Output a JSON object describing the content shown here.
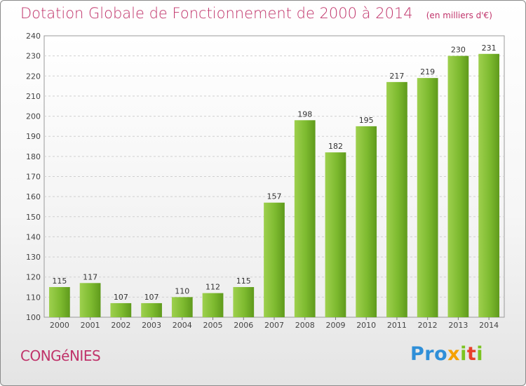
{
  "chart_data": {
    "type": "bar",
    "title": "Dotation Globale de Fonctionnement de 2000 à 2014",
    "subtitle": "(en milliers d'€)",
    "categories": [
      "2000",
      "2001",
      "2002",
      "2003",
      "2004",
      "2005",
      "2006",
      "2007",
      "2008",
      "2009",
      "2010",
      "2011",
      "2012",
      "2013",
      "2014"
    ],
    "values": [
      115,
      117,
      107,
      107,
      110,
      112,
      115,
      157,
      198,
      182,
      195,
      217,
      219,
      230,
      231
    ],
    "ylim": [
      100,
      240
    ],
    "yticks": [
      100,
      110,
      120,
      130,
      140,
      150,
      160,
      170,
      180,
      190,
      200,
      210,
      220,
      230,
      240
    ],
    "grid": true,
    "bar_color": "#7dba2f"
  },
  "footer": {
    "commune": "CONGéNIES",
    "logo": {
      "p1": "Pro",
      "p2": "x",
      "p3": "i",
      "p4": "t",
      "p5": "i"
    }
  }
}
